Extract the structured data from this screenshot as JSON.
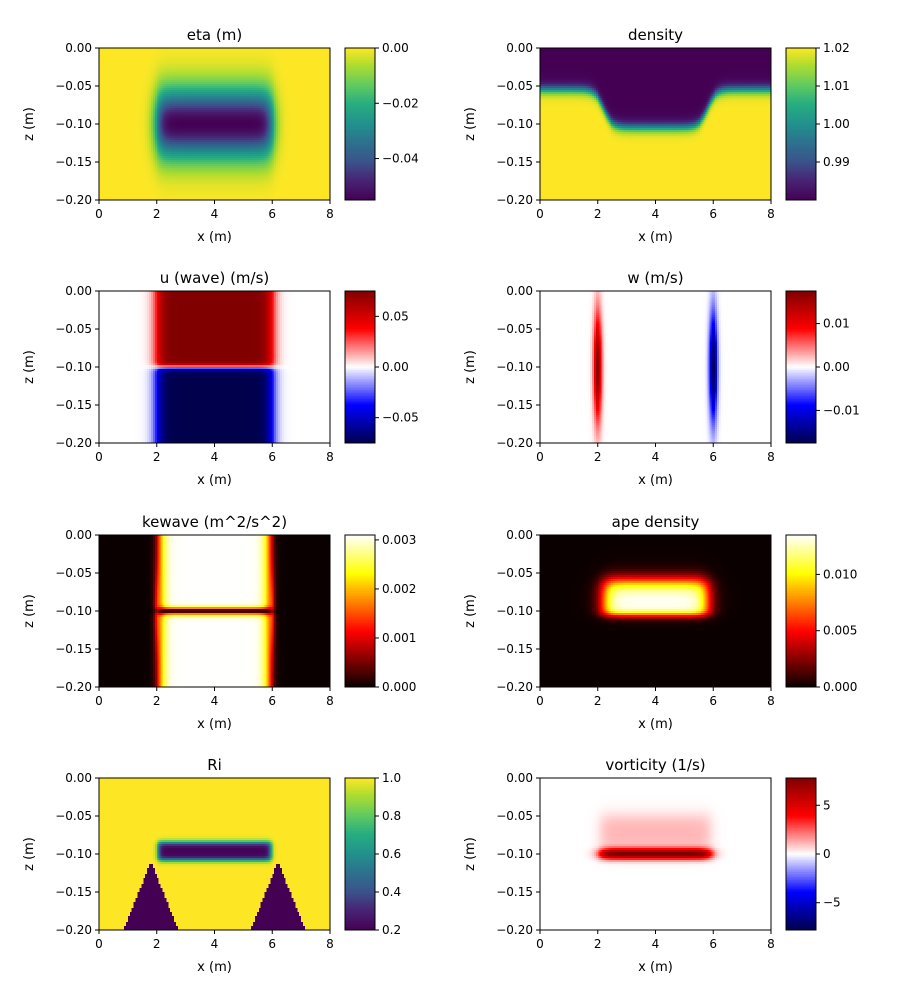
{
  "figure": {
    "xlabel": "x (m)",
    "ylabel": "z (m)",
    "xticks": [
      "0",
      "2",
      "4",
      "6",
      "8"
    ],
    "yticks": [
      "0.00",
      "−0.05",
      "−0.10",
      "−0.15",
      "−0.20"
    ]
  },
  "chart_data": [
    {
      "type": "heatmap",
      "title": "eta (m)",
      "xlabel": "x (m)",
      "ylabel": "z (m)",
      "xlim": [
        0,
        8
      ],
      "ylim": [
        -0.2,
        0
      ],
      "colormap": "viridis",
      "clim": [
        -0.055,
        0.0
      ],
      "colorbar_ticks": [
        "0.00",
        "−0.02",
        "−0.04"
      ],
      "colorbar_tick_values": [
        0.0,
        -0.02,
        -0.04
      ],
      "field": "trough of -0.055 m centred at x=4, z=-0.10, spanning x 2 to 6"
    },
    {
      "type": "heatmap",
      "title": "density",
      "xlabel": "x (m)",
      "ylabel": "z (m)",
      "xlim": [
        0,
        8
      ],
      "ylim": [
        -0.2,
        0
      ],
      "colormap": "viridis",
      "clim": [
        0.98,
        1.02
      ],
      "colorbar_ticks": [
        "1.02",
        "1.01",
        "1.00",
        "0.99"
      ],
      "colorbar_tick_values": [
        1.02,
        1.01,
        1.0,
        0.99
      ],
      "field": "light upper layer (0.98) above dense layer (1.02); interface at z=-0.055, depressed to z=-0.105 for x 2 to 6"
    },
    {
      "type": "heatmap",
      "title": "u (wave) (m/s)",
      "xlabel": "x (m)",
      "ylabel": "z (m)",
      "xlim": [
        0,
        8
      ],
      "ylim": [
        -0.2,
        0
      ],
      "colormap": "seismic",
      "clim": [
        -0.075,
        0.075
      ],
      "colorbar_ticks": [
        "0.05",
        "0.00",
        "−0.05"
      ],
      "colorbar_tick_values": [
        0.05,
        0.0,
        -0.05
      ],
      "field": "+0.075 above z=-0.10 and -0.075 below, for x 2 to 6"
    },
    {
      "type": "heatmap",
      "title": "w (m/s)",
      "xlabel": "x (m)",
      "ylabel": "z (m)",
      "xlim": [
        0,
        8
      ],
      "ylim": [
        -0.2,
        0
      ],
      "colormap": "seismic",
      "clim": [
        -0.0175,
        0.0175
      ],
      "colorbar_ticks": [
        "0.01",
        "0.00",
        "−0.01"
      ],
      "colorbar_tick_values": [
        0.01,
        0.0,
        -0.01
      ],
      "field": "positive lobe near x=2, negative lobe near x=6, peaks at z=-0.10"
    },
    {
      "type": "heatmap",
      "title": "kewave (m^2/s^2)",
      "xlabel": "x (m)",
      "ylabel": "z (m)",
      "xlim": [
        0,
        8
      ],
      "ylim": [
        -0.2,
        0
      ],
      "colormap": "hot",
      "clim": [
        0.0,
        0.0031
      ],
      "colorbar_ticks": [
        "0.003",
        "0.002",
        "0.001",
        "0.000"
      ],
      "colorbar_tick_values": [
        0.003,
        0.002,
        0.001,
        0.0
      ],
      "field": "~0.003 inside x 2 to 6, near zero at interface z=-0.10"
    },
    {
      "type": "heatmap",
      "title": "ape density",
      "xlabel": "x (m)",
      "ylabel": "z (m)",
      "xlim": [
        0,
        8
      ],
      "ylim": [
        -0.2,
        0
      ],
      "colormap": "hot",
      "clim": [
        0.0,
        0.0135
      ],
      "colorbar_ticks": [
        "0.010",
        "0.005",
        "0.000"
      ],
      "colorbar_tick_values": [
        0.01,
        0.005,
        0.0
      ],
      "field": "band of ~0.0135 between z=-0.06 and z=-0.105 for x 2 to 6"
    },
    {
      "type": "heatmap",
      "title": "Ri",
      "xlabel": "x (m)",
      "ylabel": "z (m)",
      "xlim": [
        0,
        8
      ],
      "ylim": [
        -0.2,
        0
      ],
      "colormap": "viridis",
      "clim": [
        0.2,
        1.0
      ],
      "colorbar_ticks": [
        "1.0",
        "0.8",
        "0.6",
        "0.4",
        "0.2"
      ],
      "colorbar_tick_values": [
        1.0,
        0.8,
        0.6,
        0.4,
        0.2
      ],
      "field": "1.0 background; low band z -0.085 to -0.11 for x 2 to 6; low triangles x 1 to 3 and 5 to 7 below z=-0.11"
    },
    {
      "type": "heatmap",
      "title": "vorticity (1/s)",
      "xlabel": "x (m)",
      "ylabel": "z (m)",
      "xlim": [
        0,
        8
      ],
      "ylim": [
        -0.2,
        0
      ],
      "colormap": "seismic",
      "clim": [
        -7.8,
        7.8
      ],
      "colorbar_ticks": [
        "5",
        "0",
        "−5"
      ],
      "colorbar_tick_values": [
        5,
        0,
        -5
      ],
      "field": "positive sheet up to ~7.8 at z=-0.10 for x 2 to 6, weaker above"
    }
  ]
}
